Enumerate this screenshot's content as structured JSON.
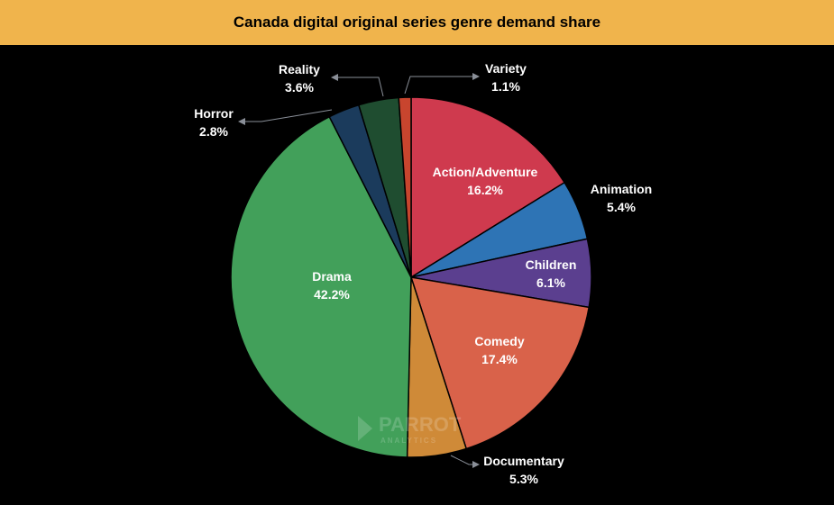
{
  "chart_data": {
    "type": "pie",
    "title": "Canada digital original series genre demand share",
    "start_angle_deg": 0,
    "direction": "clockwise",
    "slices": [
      {
        "label": "Action/Adventure",
        "value": 16.2,
        "display": "16.2%",
        "color": "#cf3a4e",
        "label_pos": "inside"
      },
      {
        "label": "Animation",
        "value": 5.4,
        "display": "5.4%",
        "color": "#2e74b5",
        "label_pos": "outside"
      },
      {
        "label": "Children",
        "value": 6.1,
        "display": "6.1%",
        "color": "#5b3f8f",
        "label_pos": "inside"
      },
      {
        "label": "Comedy",
        "value": 17.4,
        "display": "17.4%",
        "color": "#d9624a",
        "label_pos": "inside"
      },
      {
        "label": "Documentary",
        "value": 5.3,
        "display": "5.3%",
        "color": "#cf8a38",
        "label_pos": "outside"
      },
      {
        "label": "Drama",
        "value": 42.2,
        "display": "42.2%",
        "color": "#42a05a",
        "label_pos": "inside"
      },
      {
        "label": "Horror",
        "value": 2.8,
        "display": "2.8%",
        "color": "#1b3b5c",
        "label_pos": "outside"
      },
      {
        "label": "Reality",
        "value": 3.6,
        "display": "3.6%",
        "color": "#1f4d30",
        "label_pos": "outside"
      },
      {
        "label": "Variety",
        "value": 1.1,
        "display": "1.1%",
        "color": "#c8452e",
        "label_pos": "outside"
      }
    ]
  },
  "watermark": {
    "text": "PARROT",
    "subtext": "ANALYTICS"
  }
}
